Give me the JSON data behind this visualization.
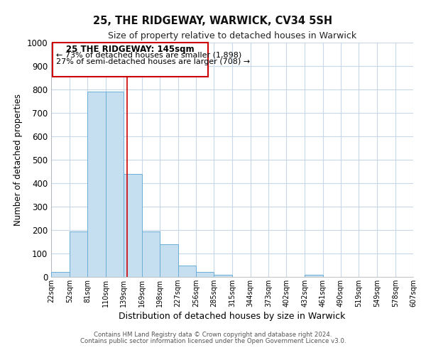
{
  "title": "25, THE RIDGEWAY, WARWICK, CV34 5SH",
  "subtitle": "Size of property relative to detached houses in Warwick",
  "xlabel": "Distribution of detached houses by size in Warwick",
  "ylabel": "Number of detached properties",
  "bin_edges": [
    22,
    52,
    81,
    110,
    139,
    169,
    198,
    227,
    256,
    285,
    315,
    344,
    373,
    402,
    432,
    461,
    490,
    519,
    549,
    578,
    607
  ],
  "bin_labels": [
    "22sqm",
    "52sqm",
    "81sqm",
    "110sqm",
    "139sqm",
    "169sqm",
    "198sqm",
    "227sqm",
    "256sqm",
    "285sqm",
    "315sqm",
    "344sqm",
    "373sqm",
    "402sqm",
    "432sqm",
    "461sqm",
    "490sqm",
    "519sqm",
    "549sqm",
    "578sqm",
    "607sqm"
  ],
  "counts": [
    20,
    195,
    790,
    790,
    440,
    195,
    140,
    50,
    20,
    10,
    0,
    0,
    0,
    0,
    10,
    0,
    0,
    0,
    0,
    0
  ],
  "bar_color": "#c5dff0",
  "bar_edge_color": "#6aaed6",
  "marker_value": 145,
  "marker_color": "#cc0000",
  "ylim": [
    0,
    1000
  ],
  "yticks": [
    0,
    100,
    200,
    300,
    400,
    500,
    600,
    700,
    800,
    900,
    1000
  ],
  "annotation_title": "25 THE RIDGEWAY: 145sqm",
  "annotation_line1": "← 73% of detached houses are smaller (1,898)",
  "annotation_line2": "27% of semi-detached houses are larger (708) →",
  "annotation_box_color": "#ffffff",
  "annotation_box_edge": "#cc0000",
  "footer1": "Contains HM Land Registry data © Crown copyright and database right 2024.",
  "footer2": "Contains public sector information licensed under the Open Government Licence v3.0.",
  "bg_color": "#ffffff",
  "grid_color": "#c8d8e8"
}
